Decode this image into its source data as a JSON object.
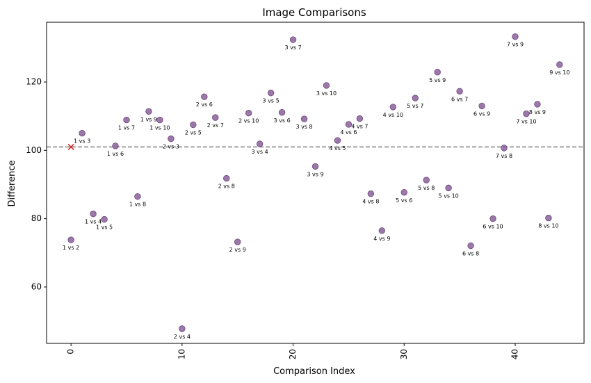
{
  "chart_data": {
    "type": "scatter",
    "title": "Image Comparisons",
    "xlabel": "Comparison Index",
    "ylabel": "Difference",
    "xlim": [
      -2.2,
      46.2
    ],
    "ylim": [
      43.5,
      137.5
    ],
    "xticks": [
      0,
      10,
      20,
      30,
      40
    ],
    "yticks": [
      60,
      80,
      100,
      120
    ],
    "x_tick_rotation": 90,
    "grid": false,
    "reference_line": {
      "y": 101,
      "style": "dashed",
      "color": "#808080"
    },
    "point_color": "#8b5f9b",
    "highlight": {
      "x": 0,
      "y": 101,
      "marker": "x",
      "color": "#d62728"
    },
    "points": [
      {
        "x": 0,
        "y": 73.8,
        "label": "1 vs 2"
      },
      {
        "x": 1,
        "y": 105.0,
        "label": "1 vs 3"
      },
      {
        "x": 2,
        "y": 81.4,
        "label": "1 vs 4"
      },
      {
        "x": 3,
        "y": 79.8,
        "label": "1 vs 5"
      },
      {
        "x": 4,
        "y": 101.3,
        "label": "1 vs 6"
      },
      {
        "x": 5,
        "y": 108.9,
        "label": "1 vs 7"
      },
      {
        "x": 6,
        "y": 86.5,
        "label": "1 vs 8"
      },
      {
        "x": 7,
        "y": 111.4,
        "label": "1 vs 9"
      },
      {
        "x": 8,
        "y": 108.9,
        "label": "1 vs 10"
      },
      {
        "x": 9,
        "y": 103.4,
        "label": "2 vs 3"
      },
      {
        "x": 10,
        "y": 47.8,
        "label": "2 vs 4"
      },
      {
        "x": 11,
        "y": 107.5,
        "label": "2 vs 5"
      },
      {
        "x": 12,
        "y": 115.7,
        "label": "2 vs 6"
      },
      {
        "x": 13,
        "y": 109.6,
        "label": "2 vs 7"
      },
      {
        "x": 14,
        "y": 91.8,
        "label": "2 vs 8"
      },
      {
        "x": 15,
        "y": 73.2,
        "label": "2 vs 9"
      },
      {
        "x": 16,
        "y": 110.9,
        "label": "2 vs 10"
      },
      {
        "x": 17,
        "y": 101.9,
        "label": "3 vs 4"
      },
      {
        "x": 18,
        "y": 116.8,
        "label": "3 vs 5"
      },
      {
        "x": 19,
        "y": 111.1,
        "label": "3 vs 6"
      },
      {
        "x": 20,
        "y": 132.4,
        "label": "3 vs 7"
      },
      {
        "x": 21,
        "y": 109.2,
        "label": "3 vs 8"
      },
      {
        "x": 22,
        "y": 95.3,
        "label": "3 vs 9"
      },
      {
        "x": 23,
        "y": 119.0,
        "label": "3 vs 10"
      },
      {
        "x": 24,
        "y": 102.9,
        "label": "4 vs 5"
      },
      {
        "x": 25,
        "y": 107.6,
        "label": "4 vs 6"
      },
      {
        "x": 26,
        "y": 109.3,
        "label": "4 vs 7"
      },
      {
        "x": 27,
        "y": 87.3,
        "label": "4 vs 8"
      },
      {
        "x": 28,
        "y": 76.5,
        "label": "4 vs 9"
      },
      {
        "x": 29,
        "y": 112.7,
        "label": "4 vs 10"
      },
      {
        "x": 30,
        "y": 87.7,
        "label": "5 vs 6"
      },
      {
        "x": 31,
        "y": 115.3,
        "label": "5 vs 7"
      },
      {
        "x": 32,
        "y": 91.3,
        "label": "5 vs 8"
      },
      {
        "x": 33,
        "y": 122.9,
        "label": "5 vs 9"
      },
      {
        "x": 34,
        "y": 89.0,
        "label": "5 vs 10"
      },
      {
        "x": 35,
        "y": 117.3,
        "label": "6 vs 7"
      },
      {
        "x": 36,
        "y": 72.1,
        "label": "6 vs 8"
      },
      {
        "x": 37,
        "y": 113.0,
        "label": "6 vs 9"
      },
      {
        "x": 38,
        "y": 80.0,
        "label": "6 vs 10"
      },
      {
        "x": 39,
        "y": 100.7,
        "label": "7 vs 8"
      },
      {
        "x": 40,
        "y": 133.3,
        "label": "7 vs 9"
      },
      {
        "x": 41,
        "y": 110.7,
        "label": "7 vs 10"
      },
      {
        "x": 42,
        "y": 113.5,
        "label": "8 vs 9"
      },
      {
        "x": 43,
        "y": 80.2,
        "label": "8 vs 10"
      },
      {
        "x": 44,
        "y": 125.1,
        "label": "9 vs 10"
      }
    ]
  }
}
